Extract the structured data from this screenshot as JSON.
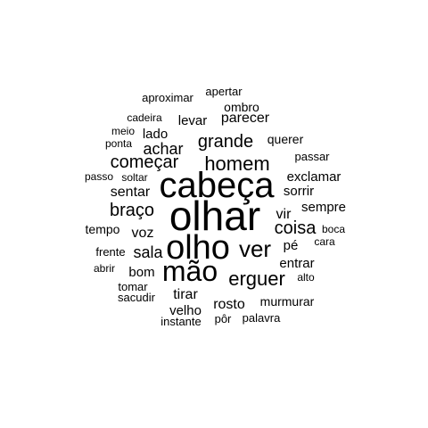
{
  "colors": {
    "text": "#000000",
    "background": "#ffffff"
  },
  "words": [
    {
      "id": "olhar",
      "text": "olhar"
    },
    {
      "id": "cabeca",
      "text": "cabeça"
    },
    {
      "id": "olho",
      "text": "olho"
    },
    {
      "id": "mao",
      "text": "mão"
    },
    {
      "id": "homem",
      "text": "homem"
    },
    {
      "id": "ver",
      "text": "ver"
    },
    {
      "id": "erguer",
      "text": "erguer"
    },
    {
      "id": "grande",
      "text": "grande"
    },
    {
      "id": "comecar",
      "text": "começar"
    },
    {
      "id": "braco",
      "text": "braço"
    },
    {
      "id": "coisa",
      "text": "coisa"
    },
    {
      "id": "sala",
      "text": "sala"
    },
    {
      "id": "achar",
      "text": "achar"
    },
    {
      "id": "sentar",
      "text": "sentar"
    },
    {
      "id": "voz",
      "text": "voz"
    },
    {
      "id": "tirar",
      "text": "tirar"
    },
    {
      "id": "rosto",
      "text": "rosto"
    },
    {
      "id": "vir",
      "text": "vir"
    },
    {
      "id": "parecer",
      "text": "parecer"
    },
    {
      "id": "levar",
      "text": "levar"
    },
    {
      "id": "exclamar",
      "text": "exclamar"
    },
    {
      "id": "sorrir",
      "text": "sorrir"
    },
    {
      "id": "entrar",
      "text": "entrar"
    },
    {
      "id": "bom",
      "text": "bom"
    },
    {
      "id": "pe",
      "text": "pé"
    },
    {
      "id": "velho",
      "text": "velho"
    },
    {
      "id": "sempre",
      "text": "sempre"
    },
    {
      "id": "lado",
      "text": "lado"
    },
    {
      "id": "tempo",
      "text": "tempo"
    },
    {
      "id": "murmurar",
      "text": "murmurar"
    },
    {
      "id": "ombro",
      "text": "ombro"
    },
    {
      "id": "querer",
      "text": "querer"
    },
    {
      "id": "passar",
      "text": "passar"
    },
    {
      "id": "tomar",
      "text": "tomar"
    },
    {
      "id": "frente",
      "text": "frente"
    },
    {
      "id": "aproximar",
      "text": "aproximar"
    },
    {
      "id": "apertar",
      "text": "apertar"
    },
    {
      "id": "palavra",
      "text": "palavra"
    },
    {
      "id": "instante",
      "text": "instante"
    },
    {
      "id": "por",
      "text": "pôr"
    },
    {
      "id": "sacudir",
      "text": "sacudir"
    },
    {
      "id": "cadeira",
      "text": "cadeira"
    },
    {
      "id": "meio",
      "text": "meio"
    },
    {
      "id": "ponta",
      "text": "ponta"
    },
    {
      "id": "passo",
      "text": "passo"
    },
    {
      "id": "soltar",
      "text": "soltar"
    },
    {
      "id": "boca",
      "text": "boca"
    },
    {
      "id": "cara",
      "text": "cara"
    },
    {
      "id": "abrir",
      "text": "abrir"
    },
    {
      "id": "alto",
      "text": "alto"
    }
  ]
}
